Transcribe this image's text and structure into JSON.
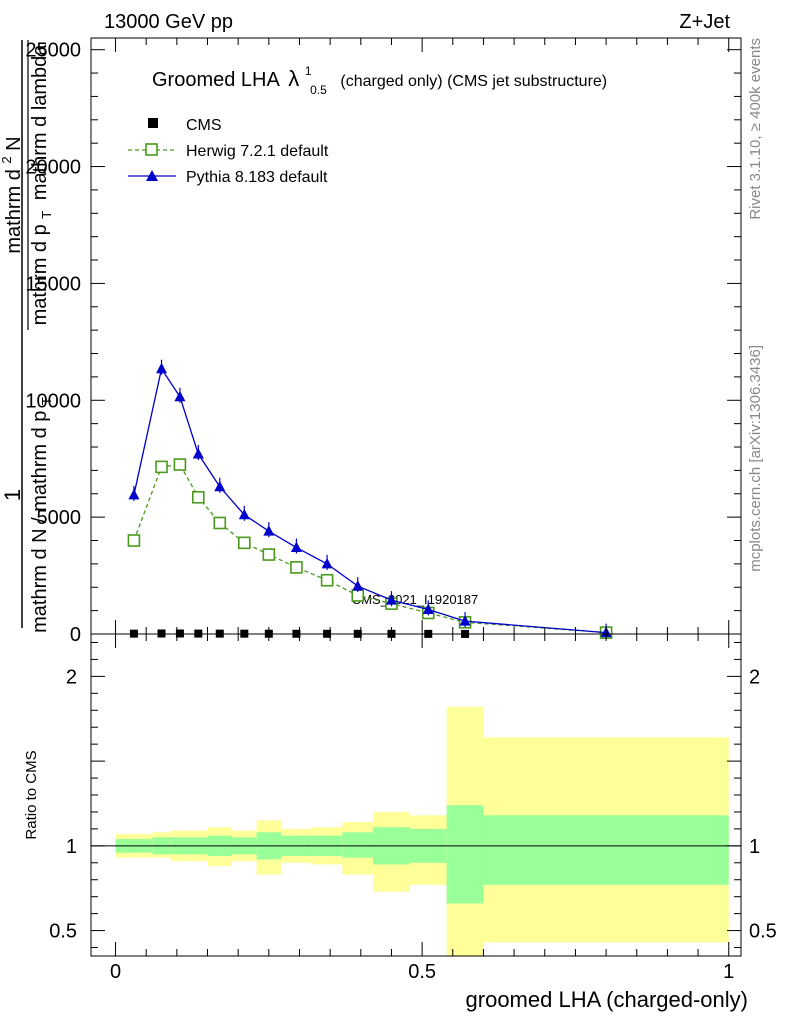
{
  "header": {
    "left": "13000 GeV pp",
    "right": "Z+Jet"
  },
  "side_text": {
    "rivet": "Rivet 3.1.10, ≥ 400k events",
    "mcplots": "mcplots.cern.ch [arXiv:1306.3436]"
  },
  "colors": {
    "herwig": "#4a9a1c",
    "pythia": "#0000cc",
    "band_inner": "#99ff99",
    "band_outer": "#ffff99"
  },
  "chart_data": [
    {
      "id": "main",
      "type": "line",
      "title": {
        "prefix": "Groomed LHA",
        "symbol": "λ",
        "sup": "1",
        "sub": "0.5",
        "suffix": "(charged only) (CMS jet substructure)"
      },
      "ylabel": {
        "numerator": "1",
        "denominator_inner": "mathrm d N / mathrm d p",
        "denominator_sub": "T",
        "fraction_top": "mathrm d",
        "fraction_top_sup": "2",
        "fraction_top_tail": "N",
        "fraction_bottom": "mathrm d p",
        "fraction_bottom_sub": "T",
        "fraction_bottom_tail": "mathrm d lambda"
      },
      "xlim": [
        -0.04,
        1.02
      ],
      "ylim": [
        0,
        25500
      ],
      "yticks": [
        0,
        5000,
        10000,
        15000,
        20000,
        25000
      ],
      "ytick_labels": [
        "0",
        "5000",
        "10000",
        "15000",
        "20000",
        "25000"
      ],
      "watermark": "CMS_2021_I1920187",
      "legend_position": "top-left",
      "series": [
        {
          "name": "CMS",
          "style": "data",
          "x": [
            0.03,
            0.075,
            0.105,
            0.135,
            0.17,
            0.21,
            0.25,
            0.295,
            0.345,
            0.395,
            0.45,
            0.51,
            0.57,
            0.8
          ],
          "y": [
            15,
            22,
            22,
            18,
            16,
            14,
            12,
            10,
            9,
            8,
            7,
            5,
            3,
            0
          ]
        },
        {
          "name": "Herwig 7.2.1 default",
          "style": "herwig",
          "x": [
            0.03,
            0.075,
            0.105,
            0.135,
            0.17,
            0.21,
            0.25,
            0.295,
            0.345,
            0.395,
            0.45,
            0.51,
            0.57,
            0.8
          ],
          "y": [
            4000,
            7150,
            7250,
            5850,
            4750,
            3900,
            3400,
            2850,
            2300,
            1650,
            1300,
            900,
            500,
            60
          ]
        },
        {
          "name": "Pythia 8.183 default",
          "style": "pythia",
          "x": [
            0.03,
            0.075,
            0.105,
            0.135,
            0.17,
            0.21,
            0.25,
            0.295,
            0.345,
            0.395,
            0.45,
            0.51,
            0.57,
            0.8
          ],
          "y": [
            5950,
            11350,
            10150,
            7700,
            6300,
            5100,
            4400,
            3700,
            3000,
            2050,
            1450,
            1050,
            550,
            60
          ]
        }
      ]
    },
    {
      "id": "ratio",
      "type": "area",
      "ylabel": "Ratio to CMS",
      "xlabel": "groomed LHA (charged-only)",
      "xlim": [
        -0.04,
        1.02
      ],
      "ylim": [
        0.35,
        2.25
      ],
      "xticks": [
        0,
        0.5,
        1
      ],
      "xtick_labels": [
        "0",
        "0.5",
        "1"
      ],
      "yticks": [
        0.5,
        1,
        2
      ],
      "ytick_labels": [
        "0.5",
        "1",
        "2"
      ],
      "reference_line": 1,
      "bins": [
        {
          "x0": 0.0,
          "x1": 0.06,
          "inner": [
            0.96,
            1.04
          ],
          "outer": [
            0.93,
            1.07
          ]
        },
        {
          "x0": 0.06,
          "x1": 0.09,
          "inner": [
            0.95,
            1.05
          ],
          "outer": [
            0.93,
            1.08
          ]
        },
        {
          "x0": 0.09,
          "x1": 0.12,
          "inner": [
            0.95,
            1.05
          ],
          "outer": [
            0.91,
            1.09
          ]
        },
        {
          "x0": 0.12,
          "x1": 0.15,
          "inner": [
            0.95,
            1.05
          ],
          "outer": [
            0.91,
            1.09
          ]
        },
        {
          "x0": 0.15,
          "x1": 0.19,
          "inner": [
            0.94,
            1.06
          ],
          "outer": [
            0.88,
            1.11
          ]
        },
        {
          "x0": 0.19,
          "x1": 0.23,
          "inner": [
            0.95,
            1.05
          ],
          "outer": [
            0.91,
            1.09
          ]
        },
        {
          "x0": 0.23,
          "x1": 0.27,
          "inner": [
            0.92,
            1.08
          ],
          "outer": [
            0.83,
            1.15
          ]
        },
        {
          "x0": 0.27,
          "x1": 0.32,
          "inner": [
            0.94,
            1.06
          ],
          "outer": [
            0.9,
            1.1
          ]
        },
        {
          "x0": 0.32,
          "x1": 0.37,
          "inner": [
            0.94,
            1.06
          ],
          "outer": [
            0.89,
            1.11
          ]
        },
        {
          "x0": 0.37,
          "x1": 0.42,
          "inner": [
            0.93,
            1.08
          ],
          "outer": [
            0.83,
            1.14
          ]
        },
        {
          "x0": 0.42,
          "x1": 0.48,
          "inner": [
            0.89,
            1.11
          ],
          "outer": [
            0.73,
            1.2
          ]
        },
        {
          "x0": 0.48,
          "x1": 0.54,
          "inner": [
            0.9,
            1.1
          ],
          "outer": [
            0.77,
            1.18
          ]
        },
        {
          "x0": 0.54,
          "x1": 0.6,
          "inner": [
            0.66,
            1.24
          ],
          "outer": [
            0.35,
            1.82
          ]
        },
        {
          "x0": 0.6,
          "x1": 1.0,
          "inner": [
            0.77,
            1.18
          ],
          "outer": [
            0.43,
            1.64
          ]
        }
      ]
    }
  ]
}
